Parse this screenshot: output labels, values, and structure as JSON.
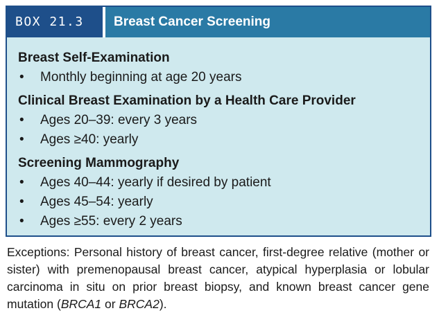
{
  "box": {
    "label": "BOX 21.3",
    "title": "Breast Cancer Screening",
    "sections": [
      {
        "heading": "Breast Self-Examination",
        "items": [
          "Monthly beginning at age 20 years"
        ]
      },
      {
        "heading": "Clinical Breast Examination by a Health Care Provider",
        "items": [
          "Ages 20–39: every 3 years",
          "Ages ≥40: yearly"
        ]
      },
      {
        "heading": "Screening Mammography",
        "items": [
          "Ages 40–44: yearly if desired by patient",
          "Ages 45–54: yearly",
          "Ages ≥55: every 2 years"
        ]
      }
    ]
  },
  "footnote": {
    "text_before": "Exceptions: Personal history of breast cancer, first-degree relative (mother or sister) with premenopausal breast cancer, atypical hyperplasia or lobular carcinoma in situ on prior breast biopsy, and known breast cancer gene mutation (",
    "gene1": "BRCA1",
    "middle": " or ",
    "gene2": "BRCA2",
    "text_after": ")."
  },
  "colors": {
    "header_dark": "#1e4f8a",
    "header_light": "#2a7aa5",
    "box_background": "#cfe9ee"
  }
}
